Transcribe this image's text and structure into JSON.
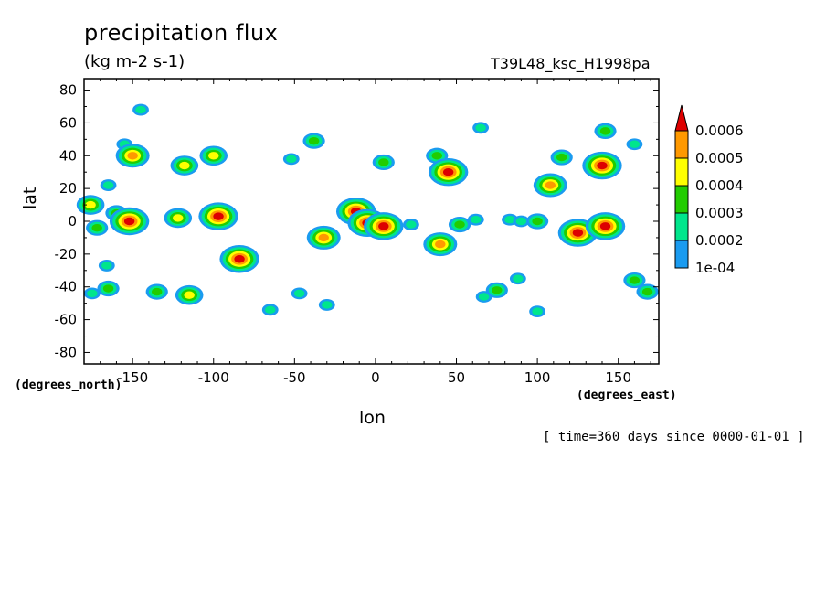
{
  "title": "precipitation flux",
  "units": "(kg m-2 s-1)",
  "run_id": "T39L48_ksc_H1998pa",
  "xlabel": "lon",
  "ylabel": "lat",
  "x_units": "(degrees_east)",
  "y_units": "(degrees_north)",
  "time_note": "[ time=360 days since 0000-01-01 ]",
  "chart_data": {
    "type": "heatmap",
    "title": "precipitation flux",
    "xlabel": "lon",
    "ylabel": "lat",
    "xlim": [
      -180,
      175
    ],
    "ylim": [
      -87,
      87
    ],
    "x_ticks": [
      -150,
      -100,
      -50,
      0,
      50,
      100,
      150
    ],
    "x_tick_labels": [
      "-150",
      "-100",
      "-50",
      "0",
      "50",
      "100",
      "150"
    ],
    "y_ticks": [
      -80,
      -60,
      -40,
      -20,
      0,
      20,
      40,
      60,
      80
    ],
    "y_tick_labels": [
      "-80",
      "-60",
      "-40",
      "-20",
      "0",
      "20",
      "40",
      "60",
      "80"
    ],
    "colorbar": {
      "levels": [
        0.0001,
        0.0002,
        0.0003,
        0.0004,
        0.0005,
        0.0006
      ],
      "labels": [
        "1e-04",
        "0.0002",
        "0.0003",
        "0.0004",
        "0.0005",
        "0.0006"
      ],
      "colors": [
        "#1a9bf0",
        "#00e68c",
        "#22cc00",
        "#ffff00",
        "#ff9900",
        "#dd0000"
      ]
    },
    "features": [
      {
        "lon": -176,
        "lat": 10,
        "level": 3
      },
      {
        "lon": -172,
        "lat": -4,
        "level": 2
      },
      {
        "lon": -175,
        "lat": -44,
        "level": 1
      },
      {
        "lon": -165,
        "lat": -41,
        "level": 2
      },
      {
        "lon": -166,
        "lat": -27,
        "level": 1
      },
      {
        "lon": -165,
        "lat": 22,
        "level": 1
      },
      {
        "lon": -155,
        "lat": 47,
        "level": 1
      },
      {
        "lon": -150,
        "lat": 40,
        "level": 4
      },
      {
        "lon": -145,
        "lat": 68,
        "level": 1
      },
      {
        "lon": -160,
        "lat": 5,
        "level": 2
      },
      {
        "lon": -152,
        "lat": 0,
        "level": 5
      },
      {
        "lon": -135,
        "lat": -43,
        "level": 2
      },
      {
        "lon": -122,
        "lat": 2,
        "level": 3
      },
      {
        "lon": -118,
        "lat": 34,
        "level": 3
      },
      {
        "lon": -115,
        "lat": -45,
        "level": 3
      },
      {
        "lon": -100,
        "lat": 40,
        "level": 3
      },
      {
        "lon": -97,
        "lat": 3,
        "level": 5
      },
      {
        "lon": -84,
        "lat": -23,
        "level": 5
      },
      {
        "lon": -65,
        "lat": -54,
        "level": 1
      },
      {
        "lon": -52,
        "lat": 38,
        "level": 1
      },
      {
        "lon": -47,
        "lat": -44,
        "level": 1
      },
      {
        "lon": -38,
        "lat": 49,
        "level": 2
      },
      {
        "lon": -32,
        "lat": -10,
        "level": 4
      },
      {
        "lon": -30,
        "lat": -51,
        "level": 1
      },
      {
        "lon": -12,
        "lat": 6,
        "level": 5
      },
      {
        "lon": -5,
        "lat": -1,
        "level": 5
      },
      {
        "lon": 5,
        "lat": -3,
        "level": 5
      },
      {
        "lon": 22,
        "lat": -2,
        "level": 1
      },
      {
        "lon": 5,
        "lat": 36,
        "level": 2
      },
      {
        "lon": 38,
        "lat": 40,
        "level": 2
      },
      {
        "lon": 45,
        "lat": 30,
        "level": 5
      },
      {
        "lon": 40,
        "lat": -14,
        "level": 4
      },
      {
        "lon": 52,
        "lat": -2,
        "level": 2
      },
      {
        "lon": 62,
        "lat": 1,
        "level": 1
      },
      {
        "lon": 83,
        "lat": 1,
        "level": 1
      },
      {
        "lon": 90,
        "lat": 0,
        "level": 1
      },
      {
        "lon": 65,
        "lat": 57,
        "level": 1
      },
      {
        "lon": 67,
        "lat": -46,
        "level": 1
      },
      {
        "lon": 75,
        "lat": -42,
        "level": 2
      },
      {
        "lon": 88,
        "lat": -35,
        "level": 1
      },
      {
        "lon": 100,
        "lat": -55,
        "level": 1
      },
      {
        "lon": 108,
        "lat": 22,
        "level": 4
      },
      {
        "lon": 100,
        "lat": 0,
        "level": 2
      },
      {
        "lon": 125,
        "lat": -7,
        "level": 5
      },
      {
        "lon": 142,
        "lat": -3,
        "level": 5
      },
      {
        "lon": 140,
        "lat": 34,
        "level": 5
      },
      {
        "lon": 115,
        "lat": 39,
        "level": 2
      },
      {
        "lon": 142,
        "lat": 55,
        "level": 2
      },
      {
        "lon": 160,
        "lat": 47,
        "level": 1
      },
      {
        "lon": 168,
        "lat": -43,
        "level": 2
      },
      {
        "lon": 160,
        "lat": -36,
        "level": 2
      }
    ]
  }
}
